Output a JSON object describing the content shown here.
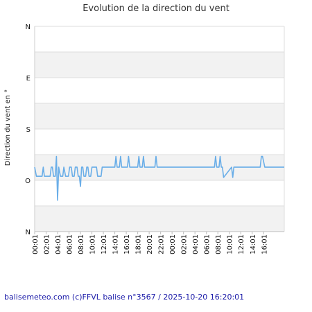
{
  "chart_data": {
    "type": "line",
    "title": "Evolution de la direction du vent",
    "ylabel": "Direction du vent en °",
    "y_tick_labels": [
      {
        "value": 0,
        "label": "N"
      },
      {
        "value": 90,
        "label": "E"
      },
      {
        "value": 180,
        "label": "S"
      },
      {
        "value": 270,
        "label": "O"
      },
      {
        "value": 360,
        "label": "N"
      }
    ],
    "ylim": [
      0,
      360
    ],
    "x_tick_labels": [
      "00:01",
      "02:01",
      "04:01",
      "06:01",
      "08:01",
      "10:01",
      "12:01",
      "14:01",
      "16:01",
      "18:01",
      "20:01",
      "22:01",
      "00:01",
      "02:01",
      "04:01",
      "06:01",
      "08:01",
      "10:01",
      "12:01",
      "14:01",
      "16:01"
    ],
    "band_colors": [
      "#f2f2f2",
      "#ffffff"
    ],
    "grid": true,
    "series": [
      {
        "color": "#6aaee8",
        "points": [
          [
            0,
            247
          ],
          [
            0.3,
            263
          ],
          [
            1.3,
            263
          ],
          [
            1.5,
            247
          ],
          [
            1.7,
            263
          ],
          [
            2.7,
            263
          ],
          [
            2.9,
            247
          ],
          [
            3.1,
            247
          ],
          [
            3.3,
            263
          ],
          [
            3.6,
            263
          ],
          [
            3.8,
            228
          ],
          [
            4.0,
            305
          ],
          [
            4.2,
            247
          ],
          [
            4.5,
            263
          ],
          [
            4.9,
            263
          ],
          [
            5.1,
            247
          ],
          [
            5.4,
            263
          ],
          [
            5.9,
            263
          ],
          [
            6.1,
            247
          ],
          [
            6.4,
            247
          ],
          [
            6.6,
            263
          ],
          [
            6.9,
            263
          ],
          [
            7.1,
            247
          ],
          [
            7.4,
            247
          ],
          [
            7.6,
            263
          ],
          [
            7.8,
            263
          ],
          [
            8.0,
            281
          ],
          [
            8.2,
            247
          ],
          [
            8.4,
            247
          ],
          [
            8.6,
            263
          ],
          [
            8.9,
            263
          ],
          [
            9.1,
            247
          ],
          [
            9.3,
            247
          ],
          [
            9.5,
            263
          ],
          [
            9.8,
            263
          ],
          [
            10.0,
            247
          ],
          [
            10.6,
            247
          ],
          [
            10.8,
            247
          ],
          [
            11.0,
            263
          ],
          [
            11.6,
            263
          ],
          [
            11.8,
            247
          ],
          [
            12.0,
            247
          ],
          [
            14.0,
            247
          ],
          [
            14.2,
            228
          ],
          [
            14.4,
            247
          ],
          [
            14.8,
            247
          ],
          [
            15.0,
            228
          ],
          [
            15.2,
            247
          ],
          [
            16.2,
            247
          ],
          [
            16.4,
            228
          ],
          [
            16.6,
            247
          ],
          [
            18.0,
            247
          ],
          [
            18.2,
            228
          ],
          [
            18.4,
            247
          ],
          [
            18.8,
            247
          ],
          [
            19.0,
            228
          ],
          [
            19.2,
            247
          ],
          [
            21.0,
            247
          ],
          [
            21.2,
            228
          ],
          [
            21.4,
            247
          ],
          [
            31.4,
            247
          ],
          [
            31.6,
            228
          ],
          [
            31.8,
            247
          ],
          [
            32.2,
            247
          ],
          [
            32.4,
            228
          ],
          [
            32.6,
            247
          ],
          [
            32.8,
            247
          ],
          [
            33.0,
            265
          ],
          [
            34.4,
            247
          ],
          [
            34.6,
            265
          ],
          [
            34.8,
            247
          ],
          [
            39.4,
            247
          ],
          [
            39.6,
            228
          ],
          [
            39.8,
            228
          ],
          [
            40.2,
            247
          ],
          [
            43.6,
            247
          ]
        ]
      }
    ],
    "x_range_hours": [
      0,
      43.6
    ]
  },
  "footer": {
    "text": "balisemeteo.com (c)FFVL balise n°3567 / 2025-10-20 16:20:01"
  }
}
